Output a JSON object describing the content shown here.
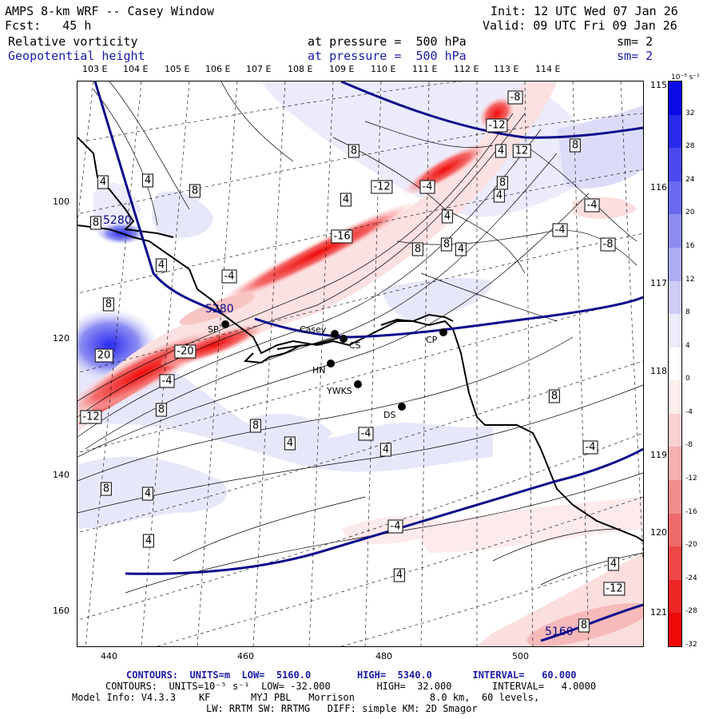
{
  "header": {
    "line1_left": "AMPS 8-km WRF -- Casey Window",
    "line2_left": "Fcst:   45 h",
    "line1_right": "Init: 12 UTC Wed 07 Jan 26",
    "line2_right": "Valid: 09 UTC Fri 09 Jan 26",
    "field1_name": "Relative vorticity",
    "field1_level": "at pressure =  500 hPa",
    "field1_sm": "sm= 2",
    "field2_name": "Geopotential height",
    "field2_level": "at pressure =  500 hPa",
    "field2_sm": "sm= 2"
  },
  "top_lon_labels": [
    "103 E",
    "104 E",
    "105 E",
    "106 E",
    "107 E",
    "108 E",
    "109 E",
    "110 E",
    "111 E",
    "112 E",
    "113 E",
    "114 E"
  ],
  "right_lon_labels": [
    "115 E",
    "116 E",
    "117 E",
    "118 E",
    "119 E",
    "120 E",
    "121 E"
  ],
  "x_ticks": [
    "440",
    "460",
    "480",
    "500"
  ],
  "y_ticks": [
    "100",
    "120",
    "140",
    "160"
  ],
  "colorbar": {
    "unit": "10⁻⁵ s⁻¹",
    "labels": [
      "32",
      "28",
      "24",
      "20",
      "16",
      "12",
      "8",
      "4",
      "0",
      "-4",
      "-8",
      "-12",
      "-16",
      "-20",
      "-24",
      "-28",
      "-32"
    ],
    "colors": [
      "#0a0ae6",
      "#2a2af0",
      "#4a4af0",
      "#6a6af0",
      "#8c8cf2",
      "#acacf5",
      "#cdcdf8",
      "#ebebfc",
      "#ffffff",
      "#fdeeee",
      "#f9d2d2",
      "#f5b0b0",
      "#f28d8d",
      "#ef6a6a",
      "#ef4747",
      "#f02626",
      "#f00a0a"
    ]
  },
  "stations": [
    {
      "name": "SP"
    },
    {
      "name": "Casey"
    },
    {
      "name": "CS"
    },
    {
      "name": "HN"
    },
    {
      "name": "YWKS"
    },
    {
      "name": "DS"
    },
    {
      "name": "CP"
    }
  ],
  "contour_labels": [
    "-8",
    "-12",
    "4",
    "8",
    "12",
    "8",
    "4",
    "-12",
    "-4",
    "4",
    "8",
    "8",
    "4",
    "-4",
    "4",
    "8",
    "-16",
    "4",
    "8",
    "4",
    "8",
    "20",
    "-20",
    "-4",
    "-12",
    "8",
    "8",
    "8",
    "4",
    "-4",
    "4",
    "4",
    "-4",
    "4",
    "-4",
    "8",
    "8",
    "4",
    "-4",
    "-8",
    "4",
    "-12",
    "8",
    "4",
    "-4"
  ],
  "height_labels": [
    "5280",
    "5160"
  ],
  "footer": {
    "line1": "CONTOURS:  UNITS=m  LOW=  5160.0        HIGH=  5340.0       INTERVAL=   60.000",
    "line2": "CONTOURS:  UNITS=10⁻⁵ s⁻¹  LOW= -32.000        HIGH=  32.000       INTERVAL=   4.0000",
    "line3": "Model Info: V4.3.3    KF       MYJ PBL   Morrison             8.0 km,  60 levels,",
    "line4": "LW: RRTM SW: RRTMG   DIFF: simple KM: 2D Smagor"
  }
}
